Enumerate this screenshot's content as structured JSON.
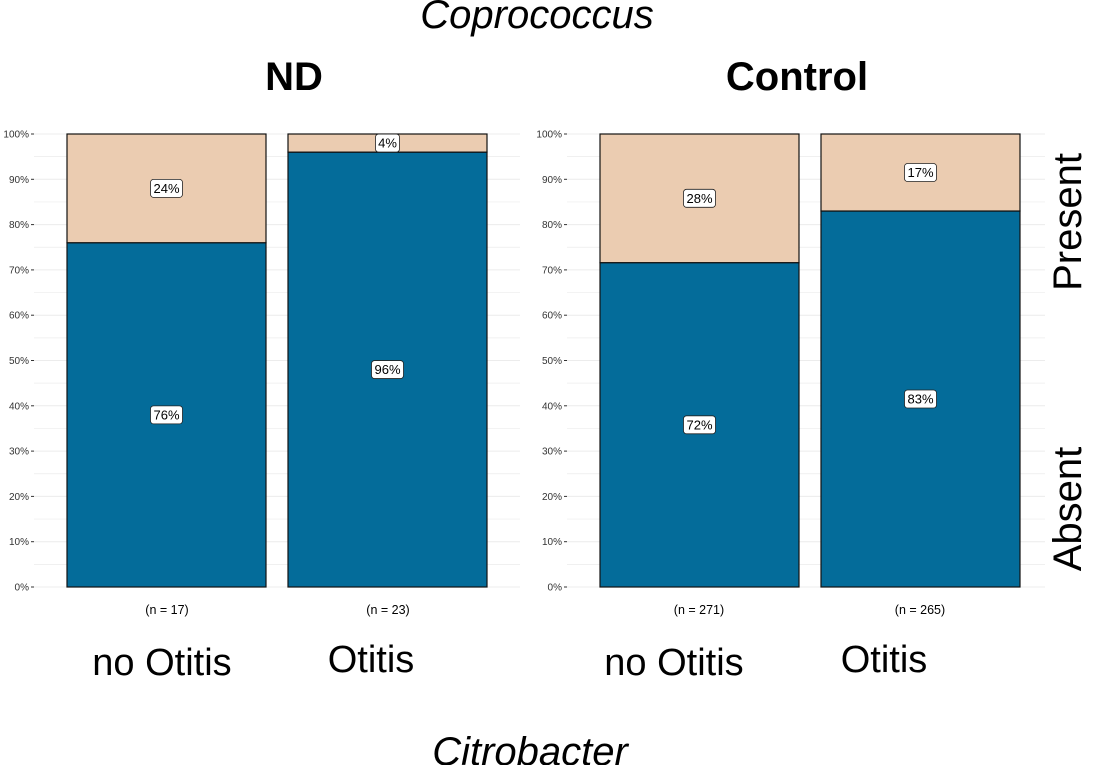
{
  "chart_data": {
    "type": "bar",
    "stacked": true,
    "title": "Coprococcus",
    "footer_title": "Citrobacter",
    "yticks": [
      "0%",
      "10%",
      "20%",
      "30%",
      "40%",
      "50%",
      "60%",
      "70%",
      "80%",
      "90%",
      "100%"
    ],
    "ylim": [
      0,
      100
    ],
    "row_labels": [
      "Present",
      "Absent"
    ],
    "colors": {
      "Absent": "#046C9A",
      "Present": "#EBCCB1",
      "outline": "#111111",
      "grid": "#ececec"
    },
    "panels": [
      {
        "title": "ND",
        "categories": [
          "no Otitis",
          "Otitis"
        ],
        "counts": [
          "(n = 17)",
          "(n = 23)"
        ],
        "series": [
          {
            "name": "Absent",
            "values": [
              76,
              96
            ],
            "labels": [
              "76%",
              "96%"
            ]
          },
          {
            "name": "Present",
            "values": [
              24,
              4
            ],
            "labels": [
              "24%",
              "4%"
            ]
          }
        ]
      },
      {
        "title": "Control",
        "categories": [
          "no Otitis",
          "Otitis"
        ],
        "counts": [
          "(n = 271)",
          "(n = 265)"
        ],
        "series": [
          {
            "name": "Absent",
            "values": [
              71.6,
              83
            ],
            "labels": [
              "72%",
              "83%"
            ]
          },
          {
            "name": "Present",
            "values": [
              28.4,
              17
            ],
            "labels": [
              "28%",
              "17%"
            ]
          }
        ]
      }
    ]
  }
}
